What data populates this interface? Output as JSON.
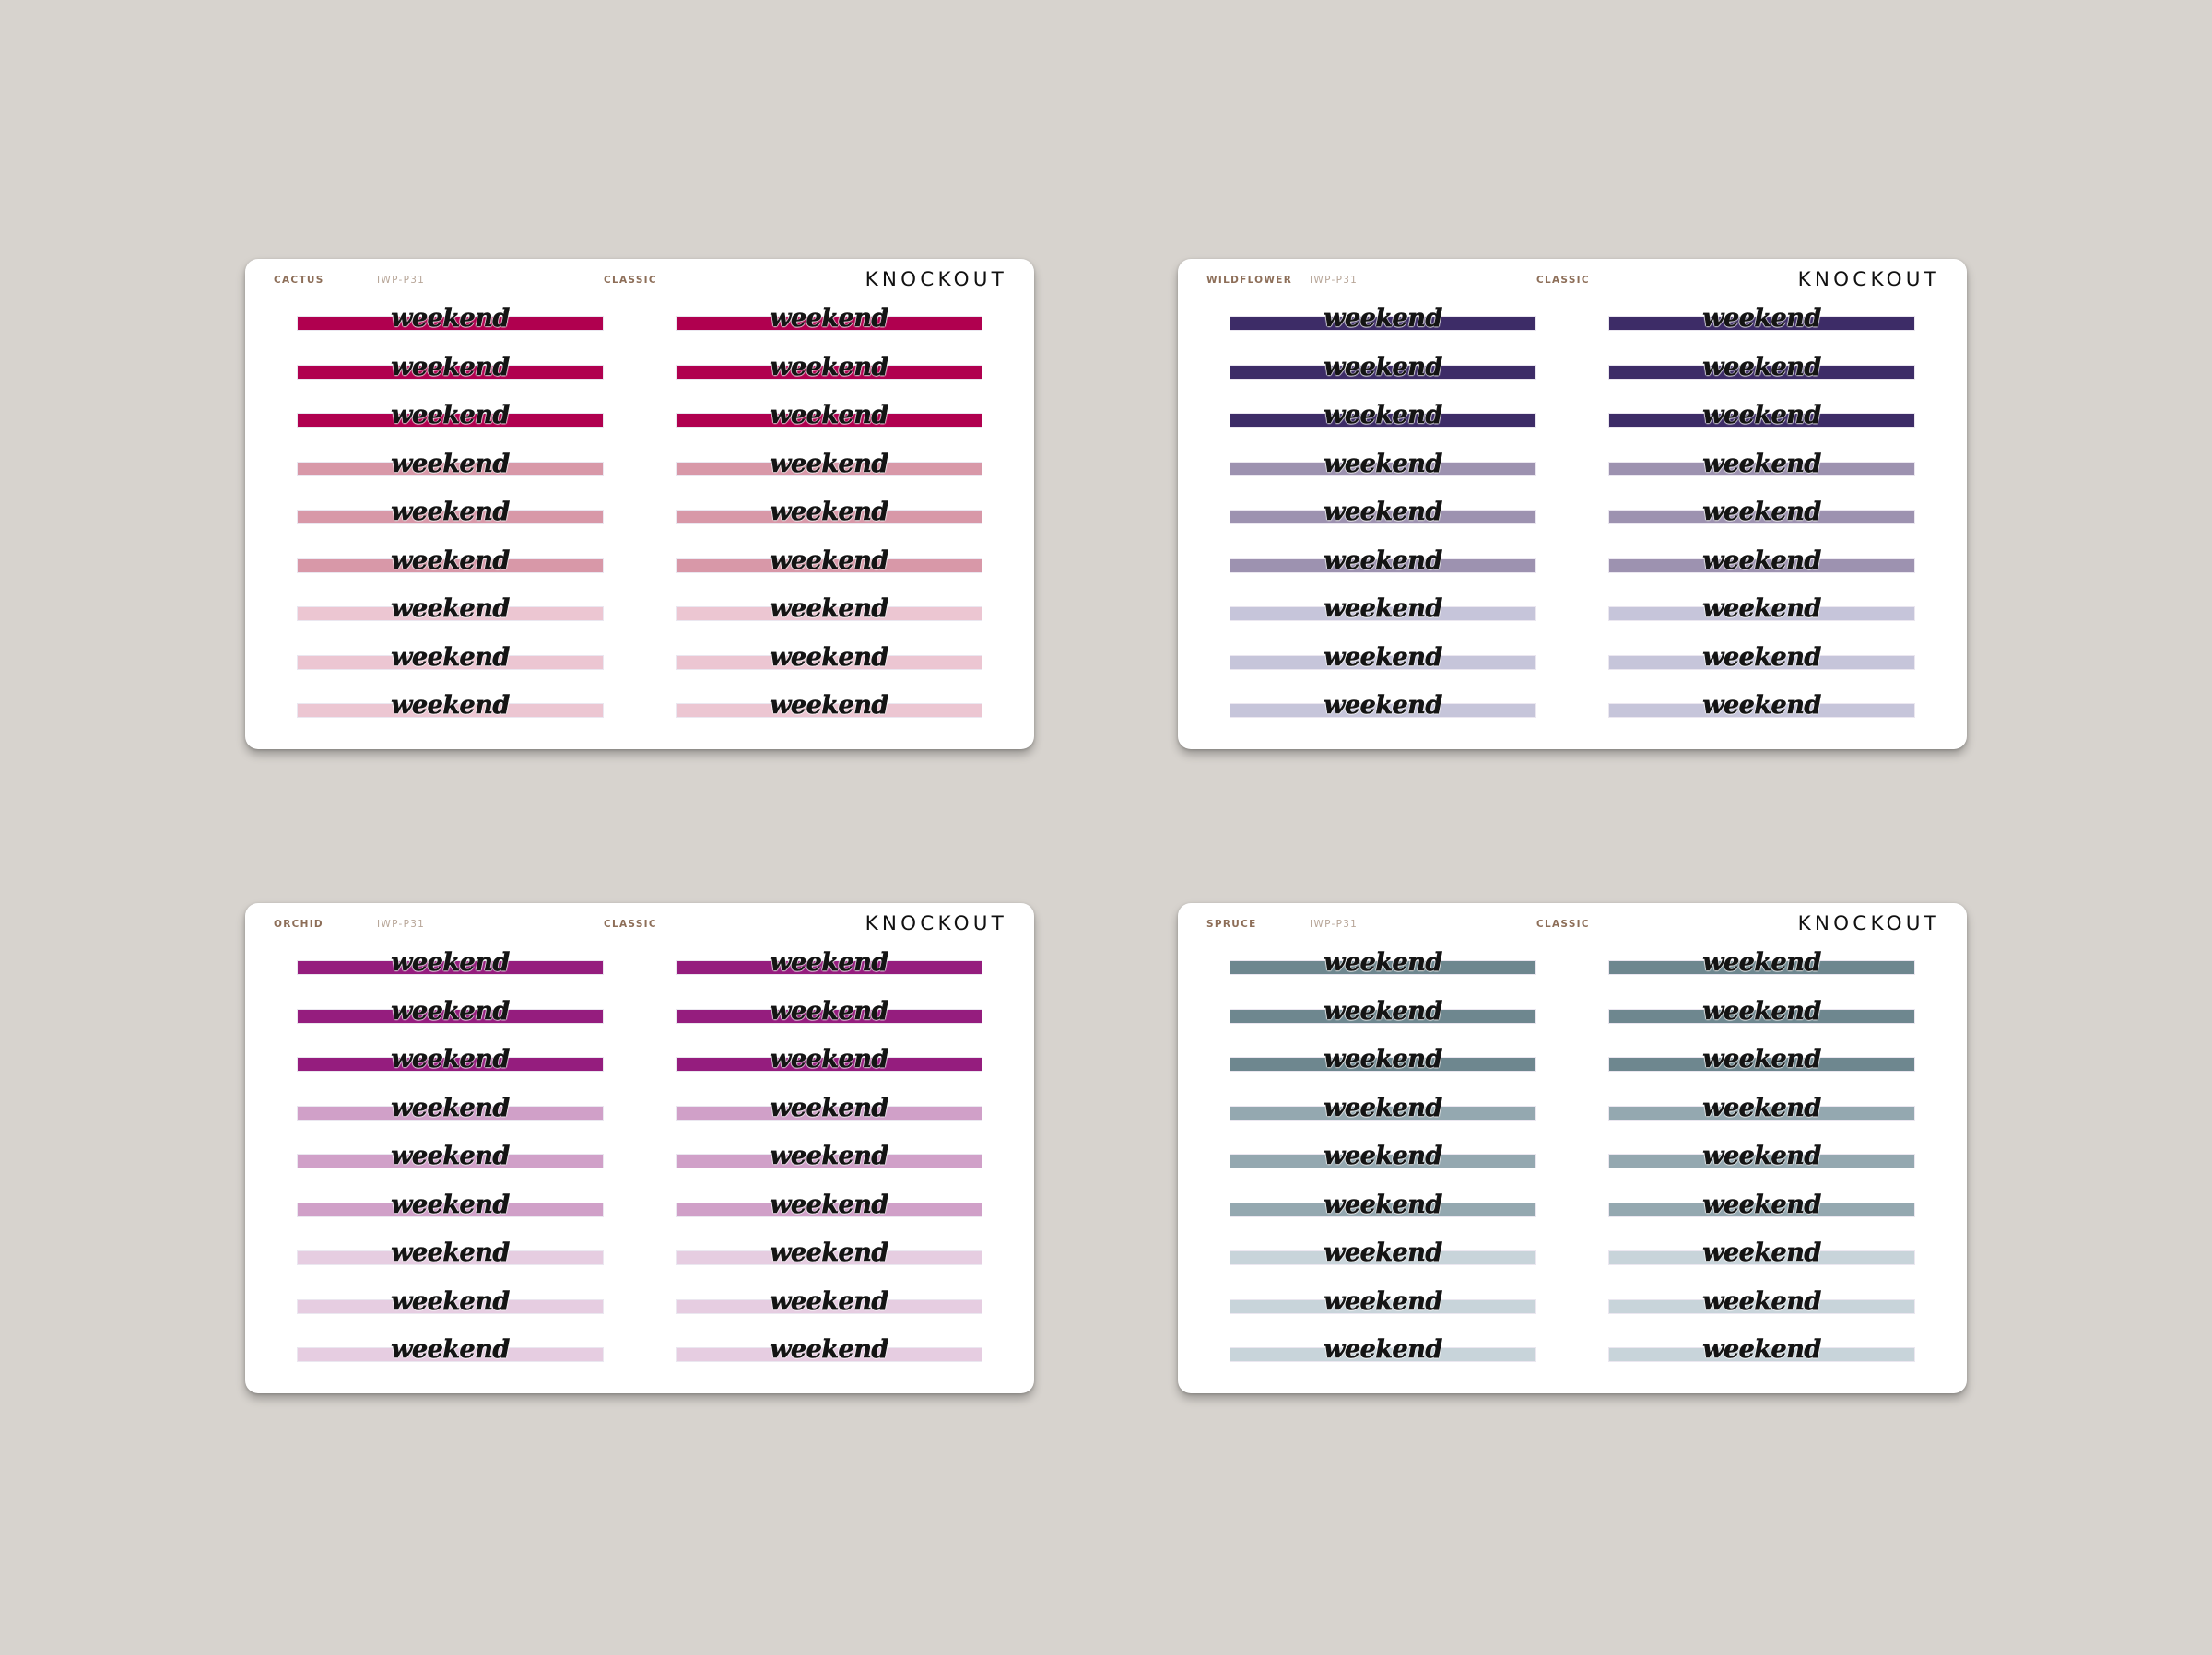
{
  "brand": "KNOCKOUT",
  "code": "IWP-P31",
  "style": "CLASSIC",
  "sticker_text": "weekend",
  "sheets": [
    {
      "name": "CACTUS",
      "colors": [
        "#b0004f",
        "#d898a8",
        "#ecc6d2"
      ]
    },
    {
      "name": "WILDFLOWER",
      "colors": [
        "#3d2c67",
        "#9d92b0",
        "#c6c5da"
      ]
    },
    {
      "name": "ORCHID",
      "colors": [
        "#951d7e",
        "#d0a0c8",
        "#e6cde1"
      ]
    },
    {
      "name": "SPRUCE",
      "colors": [
        "#6e878f",
        "#94a8b0",
        "#c8d4da"
      ]
    }
  ]
}
